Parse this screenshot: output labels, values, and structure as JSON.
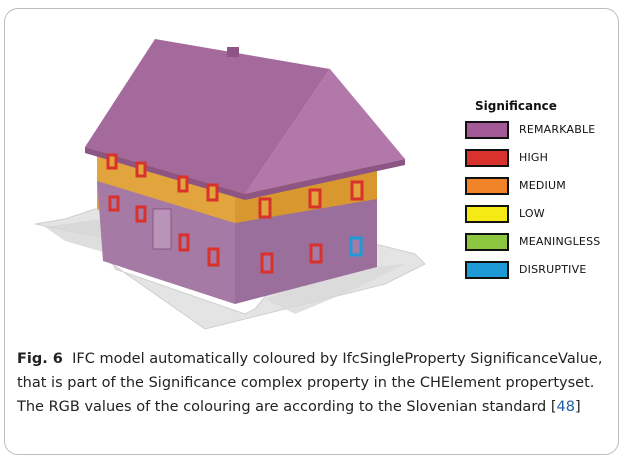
{
  "legend": {
    "title": "Significance",
    "items": [
      {
        "label": "REMARKABLE",
        "color": "#a55a98"
      },
      {
        "label": "HIGH",
        "color": "#d9312b"
      },
      {
        "label": "MEDIUM",
        "color": "#f08228"
      },
      {
        "label": "LOW",
        "color": "#f5ea14"
      },
      {
        "label": "MEANINGLESS",
        "color": "#8cc63e"
      },
      {
        "label": "DISRUPTIVE",
        "color": "#1e9bd7"
      }
    ]
  },
  "caption": {
    "label": "Fig. 6",
    "text_before_ref": "IFC model automatically coloured by IfcSingleProperty SignificanceValue, that is part of the Significance complex property in the CHElement propertyset. The RGB values of the colouring are according to the Slovenian standard [",
    "ref": "48",
    "text_after_ref": "]"
  },
  "colors": {
    "roof": "#a56a9c",
    "roof_shade": "#8c5583",
    "upper_wall": "#e2a43c",
    "lower_wall": "#a57ba6",
    "window_frame": "#d9312b",
    "disruptive_window": "#1e9bd7",
    "terrain": "#e3e3e3"
  }
}
